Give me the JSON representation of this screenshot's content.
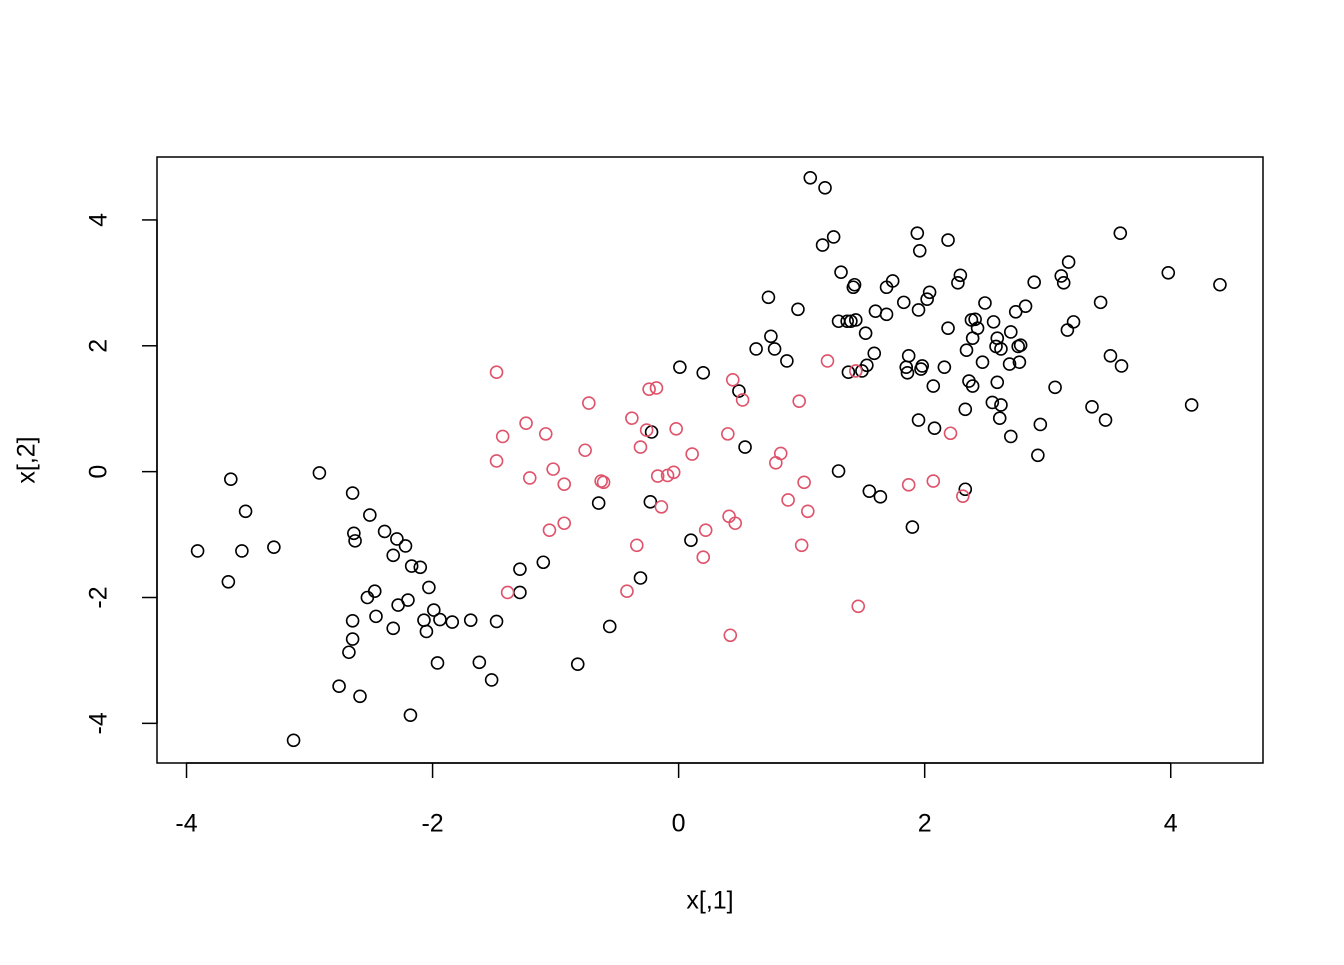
{
  "chart_data": {
    "type": "scatter",
    "x_label": "x[,1]",
    "y_label": "x[,2]",
    "xlim": [
      -4.24,
      4.75
    ],
    "ylim": [
      -4.63,
      5.0
    ],
    "xticks": [
      -4,
      -2,
      0,
      2,
      4
    ],
    "yticks": [
      -4,
      -2,
      0,
      2,
      4
    ],
    "series": [
      {
        "color": "#000000",
        "x": [
          -3.91,
          -3.66,
          -3.64,
          -3.55,
          -3.52,
          -3.29,
          -3.13,
          -2.92,
          -2.76,
          -2.68,
          -2.65,
          -2.65,
          -2.65,
          -2.64,
          -2.63,
          -2.59,
          -2.53,
          -2.51,
          -2.47,
          -2.46,
          -2.39,
          -2.32,
          -2.32,
          -2.29,
          -2.28,
          -2.22,
          -2.2,
          -2.18,
          -2.17,
          -2.1,
          -2.07,
          -2.05,
          -2.03,
          -1.99,
          -1.96,
          -1.94,
          -1.84,
          -1.69,
          -1.62,
          -1.52,
          -1.48,
          -1.29,
          -1.29,
          -1.1,
          -0.82,
          -0.65,
          -0.56,
          -0.31,
          -0.23,
          -0.22,
          0.01,
          0.1,
          0.2,
          0.49,
          0.54,
          0.63,
          0.73,
          0.75,
          0.78,
          0.88,
          0.97,
          1.07,
          1.19,
          1.17,
          1.26,
          1.3,
          1.3,
          1.32,
          1.37,
          1.38,
          1.4,
          1.42,
          1.43,
          1.44,
          1.49,
          1.52,
          1.53,
          1.55,
          1.59,
          1.6,
          1.64,
          1.69,
          1.69,
          1.74,
          1.83,
          1.85,
          1.86,
          1.87,
          1.9,
          1.94,
          1.95,
          1.95,
          1.96,
          1.97,
          1.98,
          2.02,
          2.04,
          2.07,
          2.08,
          2.16,
          2.19,
          2.19,
          2.27,
          2.29,
          2.33,
          2.33,
          2.34,
          2.36,
          2.38,
          2.39,
          2.39,
          2.41,
          2.43,
          2.47,
          2.49,
          2.55,
          2.56,
          2.58,
          2.59,
          2.59,
          2.61,
          2.62,
          2.62,
          2.69,
          2.7,
          2.7,
          2.74,
          2.76,
          2.77,
          2.78,
          2.82,
          2.89,
          2.92,
          2.94,
          3.06,
          3.11,
          3.13,
          3.16,
          3.17,
          3.21,
          3.36,
          3.43,
          3.47,
          3.51,
          3.59,
          3.6,
          3.98,
          4.17,
          4.4
        ],
        "y": [
          -1.26,
          -1.75,
          -0.12,
          -1.26,
          -0.63,
          -1.2,
          -4.27,
          -0.02,
          -3.41,
          -2.87,
          -0.34,
          -2.37,
          -2.66,
          -0.98,
          -1.1,
          -3.57,
          -2.0,
          -0.69,
          -1.9,
          -2.3,
          -0.95,
          -2.49,
          -1.33,
          -1.07,
          -2.12,
          -1.18,
          -2.04,
          -3.87,
          -1.5,
          -1.52,
          -2.36,
          -2.54,
          -1.84,
          -2.2,
          -3.04,
          -2.35,
          -2.39,
          -2.36,
          -3.03,
          -3.31,
          -2.38,
          -1.55,
          -1.92,
          -1.44,
          -3.06,
          -0.5,
          -2.46,
          -1.69,
          -0.48,
          0.63,
          1.66,
          -1.09,
          1.57,
          1.28,
          0.39,
          1.95,
          2.77,
          2.15,
          1.95,
          1.76,
          2.58,
          4.67,
          4.51,
          3.6,
          3.73,
          0.01,
          2.39,
          3.17,
          2.39,
          1.58,
          2.39,
          2.93,
          2.97,
          2.41,
          1.6,
          2.2,
          1.69,
          -0.31,
          1.88,
          2.55,
          -0.4,
          2.5,
          2.93,
          3.03,
          2.69,
          1.66,
          1.57,
          1.84,
          -0.88,
          3.79,
          2.57,
          0.82,
          3.51,
          1.63,
          1.68,
          2.74,
          2.85,
          1.36,
          0.69,
          1.66,
          3.68,
          2.28,
          3.0,
          3.12,
          0.99,
          -0.28,
          1.93,
          1.44,
          2.41,
          2.12,
          1.36,
          2.42,
          2.28,
          1.74,
          2.68,
          1.1,
          2.38,
          1.99,
          2.12,
          1.42,
          0.85,
          1.06,
          1.95,
          1.71,
          2.22,
          0.56,
          2.54,
          1.99,
          1.74,
          2.01,
          2.63,
          3.01,
          0.26,
          0.75,
          1.34,
          3.11,
          3.0,
          2.25,
          3.33,
          2.38,
          1.03,
          2.69,
          0.82,
          1.84,
          3.79,
          1.68,
          3.16,
          1.06,
          2.97
        ]
      },
      {
        "color": "#DF536B",
        "x": [
          -1.48,
          -1.48,
          -1.43,
          -1.39,
          -1.24,
          -1.21,
          -1.08,
          -1.05,
          -1.02,
          -0.93,
          -0.93,
          -0.76,
          -0.73,
          -0.63,
          -0.61,
          -0.42,
          -0.38,
          -0.34,
          -0.31,
          -0.26,
          -0.24,
          -0.18,
          -0.17,
          -0.14,
          -0.09,
          -0.04,
          -0.02,
          0.11,
          0.2,
          0.22,
          0.4,
          0.41,
          0.42,
          0.44,
          0.46,
          0.52,
          0.79,
          0.83,
          0.89,
          0.98,
          1.0,
          1.02,
          1.05,
          1.21,
          1.44,
          1.46,
          1.87,
          2.07,
          2.21,
          2.31
        ],
        "y": [
          1.58,
          0.17,
          0.56,
          -1.92,
          0.77,
          -0.1,
          0.6,
          -0.93,
          0.04,
          -0.2,
          -0.82,
          0.34,
          1.09,
          -0.15,
          -0.17,
          -1.9,
          0.85,
          -1.17,
          0.39,
          0.66,
          1.31,
          1.33,
          -0.07,
          -0.56,
          -0.06,
          -0.01,
          0.68,
          0.28,
          -1.36,
          -0.93,
          0.6,
          -0.71,
          -2.6,
          1.46,
          -0.82,
          1.14,
          0.14,
          0.29,
          -0.45,
          1.12,
          -1.17,
          -0.17,
          -0.63,
          1.76,
          1.6,
          -2.14,
          -0.21,
          -0.15,
          0.61,
          -0.39
        ]
      }
    ]
  }
}
